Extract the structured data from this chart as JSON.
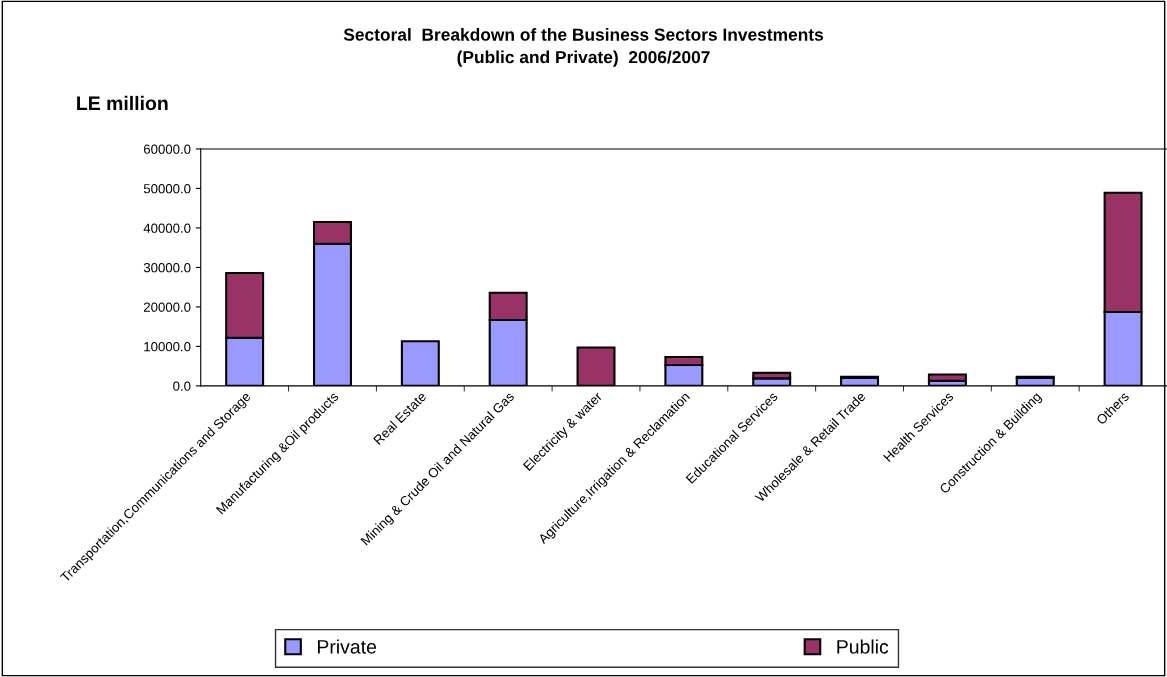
{
  "chart_data": {
    "type": "bar",
    "title": "Sectoral  Breakdown of the Business Sectors Investments\n(Public and Private)  2006/2007",
    "ylabel": "LE million",
    "categories": [
      "Transportation,Communications and Storage",
      "Manufacturing &Oil products",
      "Real Estate",
      "Mining & Crude Oil and Natural Gas",
      "Electricity & water",
      "Agriculture,Irrigation & Reclamation",
      "Educational Services",
      "Wholesale & Retail Trade",
      "Health Services",
      "Construction & Building",
      "Others"
    ],
    "stacked": true,
    "series": [
      {
        "name": "Private",
        "color": "#9999ff",
        "values": [
          12200,
          36000,
          11300,
          16700,
          null,
          5300,
          1900,
          2000,
          1300,
          2000,
          18700
        ]
      },
      {
        "name": "Public",
        "color": "#993366",
        "values": [
          16400,
          5500,
          null,
          6900,
          9700,
          2000,
          1400,
          300,
          1600,
          300,
          30200
        ]
      }
    ],
    "ylim": [
      0,
      60000
    ],
    "yticks": [
      {
        "value": 0,
        "label": "0.0"
      },
      {
        "value": 10000,
        "label": "10000.0"
      },
      {
        "value": 20000,
        "label": "20000.0"
      },
      {
        "value": 30000,
        "label": "30000.0"
      },
      {
        "value": 40000,
        "label": "40000.0"
      },
      {
        "value": 50000,
        "label": "50000.0"
      },
      {
        "value": 60000,
        "label": "60000.0"
      }
    ],
    "grid": false,
    "legend": "bottom"
  }
}
